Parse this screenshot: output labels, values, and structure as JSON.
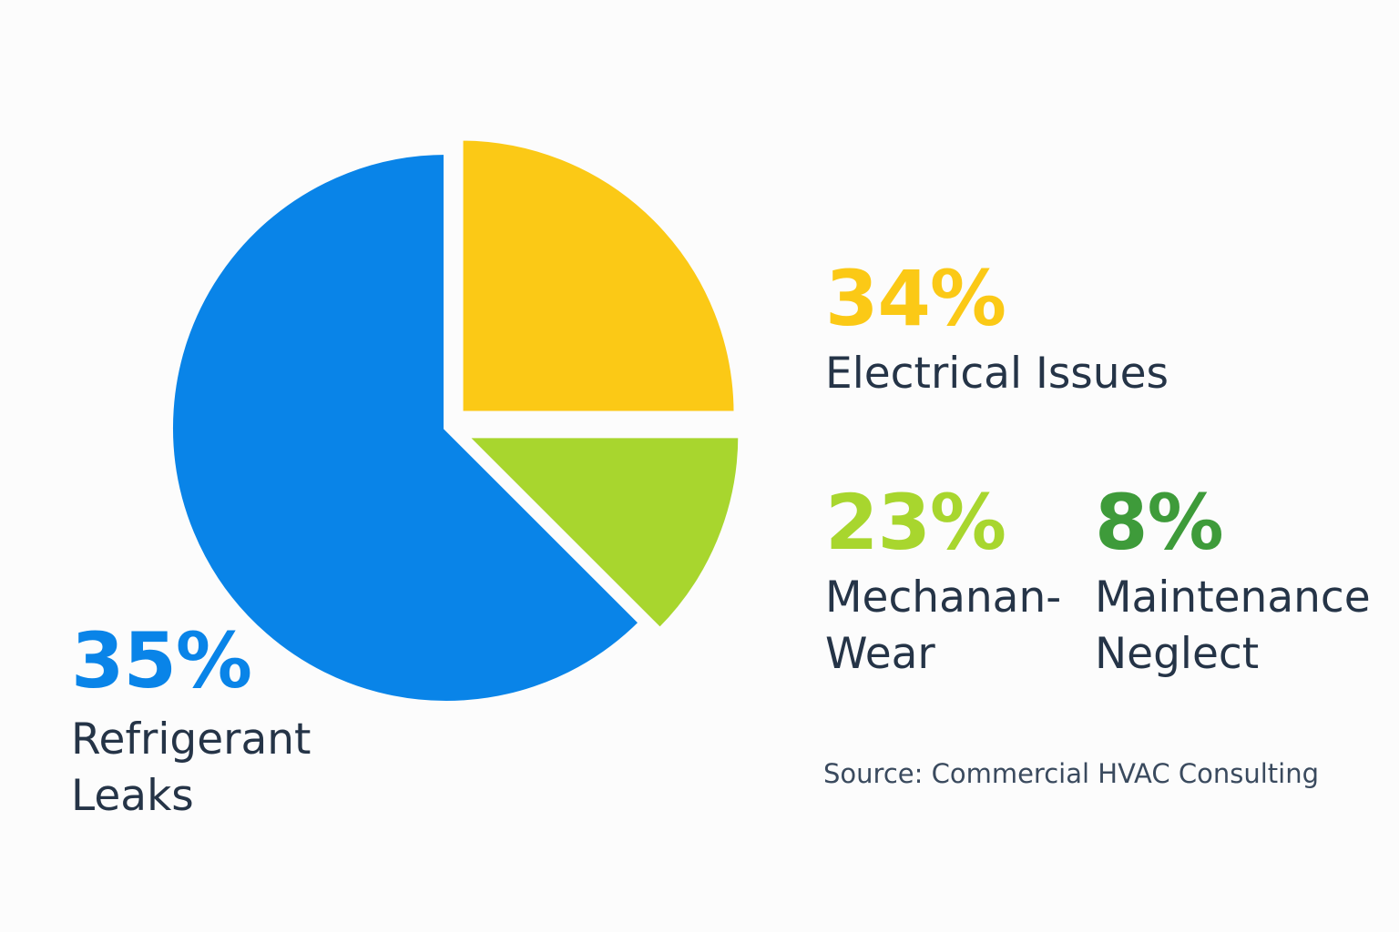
{
  "chart_data": {
    "type": "pie",
    "title": "",
    "slices": [
      {
        "label": "Refrigerant Leaks",
        "label_lines": [
          "Refrigerant",
          "Leaks"
        ],
        "value": 35,
        "display": "35%",
        "color": "#0984e8"
      },
      {
        "label": "Electrical Issues",
        "label_lines": [
          "Electrical Issues"
        ],
        "value": 34,
        "display": "34%",
        "color": "#fbc916"
      },
      {
        "label": "Mechanan-Wear",
        "label_lines": [
          "Mechanan-",
          "Wear"
        ],
        "value": 23,
        "display": "23%",
        "color": "#a8d62e"
      },
      {
        "label": "Maintenance Neglect",
        "label_lines": [
          "Maintenance",
          "Neglect"
        ],
        "value": 8,
        "display": "8%",
        "color": "#3e9b3a"
      }
    ],
    "label_color": "#253447"
  },
  "source": "Source: Commercial HVAC Consulting"
}
